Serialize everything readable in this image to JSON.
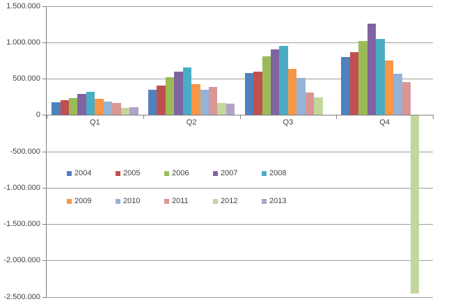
{
  "chart_data": {
    "type": "bar",
    "title": "",
    "xlabel": "",
    "ylabel": "",
    "categories": [
      "Q1",
      "Q2",
      "Q3",
      "Q4"
    ],
    "series": [
      {
        "name": "2004",
        "color": "#4F81BD",
        "values": [
          180000,
          350000,
          580000,
          800000
        ]
      },
      {
        "name": "2005",
        "color": "#C0504D",
        "values": [
          210000,
          410000,
          600000,
          870000
        ]
      },
      {
        "name": "2006",
        "color": "#9BBB59",
        "values": [
          240000,
          520000,
          810000,
          1020000
        ]
      },
      {
        "name": "2007",
        "color": "#8064A2",
        "values": [
          290000,
          600000,
          910000,
          1260000
        ]
      },
      {
        "name": "2008",
        "color": "#4BACC6",
        "values": [
          320000,
          660000,
          950000,
          1050000
        ]
      },
      {
        "name": "2009",
        "color": "#F79646",
        "values": [
          230000,
          430000,
          640000,
          750000
        ]
      },
      {
        "name": "2010",
        "color": "#95B3D7",
        "values": [
          190000,
          350000,
          510000,
          570000
        ]
      },
      {
        "name": "2011",
        "color": "#D99694",
        "values": [
          170000,
          390000,
          310000,
          460000
        ]
      },
      {
        "name": "2012",
        "color": "#C3D69B",
        "values": [
          100000,
          170000,
          250000,
          -2450000
        ]
      },
      {
        "name": "2013",
        "color": "#B3A2C7",
        "values": [
          110000,
          160000,
          0,
          0
        ]
      }
    ],
    "y_axis": {
      "min": -2500000,
      "max": 1500000,
      "step": 500000,
      "tick_labels": [
        "1.500.000",
        "1.000.000",
        "500.000",
        "0",
        "-500.000",
        "-1.000.000",
        "-1.500.000",
        "-2.000.000",
        "-2.500.000"
      ]
    },
    "legend": {
      "position": "inside-middle-left",
      "rows": [
        [
          "2004",
          "2005",
          "2006",
          "2007",
          "2008"
        ],
        [
          "2009",
          "2010",
          "2011",
          "2012",
          "2013"
        ]
      ]
    },
    "grid": true,
    "number_format": "thousands-dot"
  },
  "colors": {
    "background": "#FFFFFF",
    "gridline": "#9B9B9B",
    "axis": "#808080",
    "text": "#404040"
  }
}
